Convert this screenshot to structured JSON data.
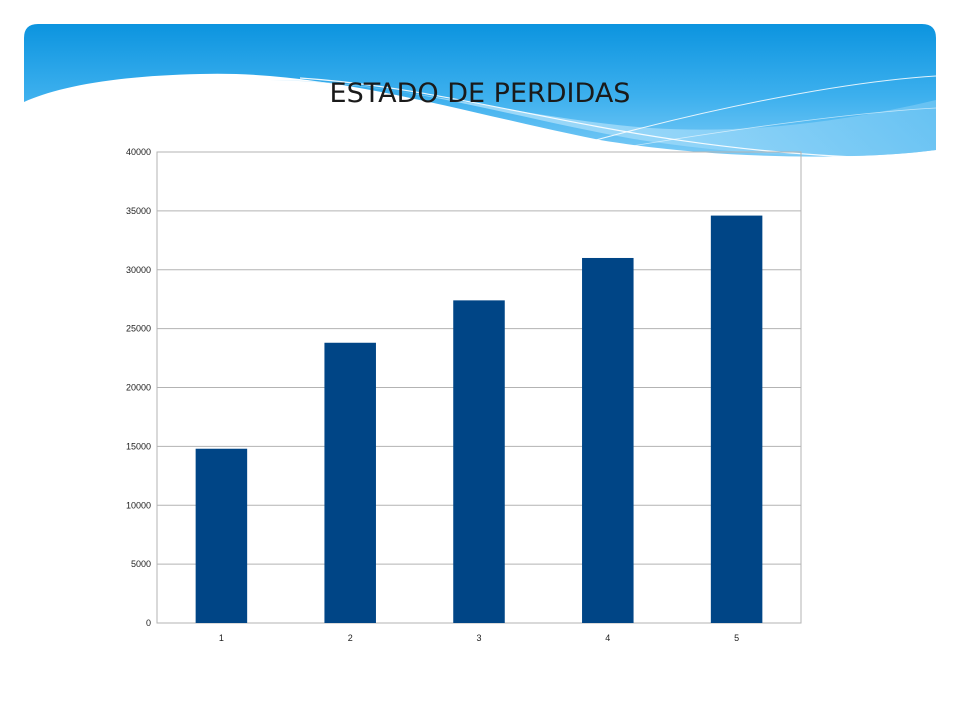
{
  "slide": {
    "title": "ESTADO DE PERDIDAS"
  },
  "colors": {
    "bar": "#004586",
    "header_top": "#0a96e0",
    "header_light": "#8fd2f8",
    "gridline": "#b3b3b3"
  },
  "chart_data": {
    "type": "bar",
    "title": "",
    "xlabel": "",
    "ylabel": "",
    "categories": [
      "1",
      "2",
      "3",
      "4",
      "5"
    ],
    "values": [
      14800,
      23800,
      27400,
      31000,
      34600
    ],
    "ylim": [
      0,
      40000
    ],
    "yticks": [
      "0",
      "5000",
      "10000",
      "15000",
      "20000",
      "25000",
      "30000",
      "35000",
      "40000"
    ],
    "grid": true,
    "legend": "none"
  }
}
